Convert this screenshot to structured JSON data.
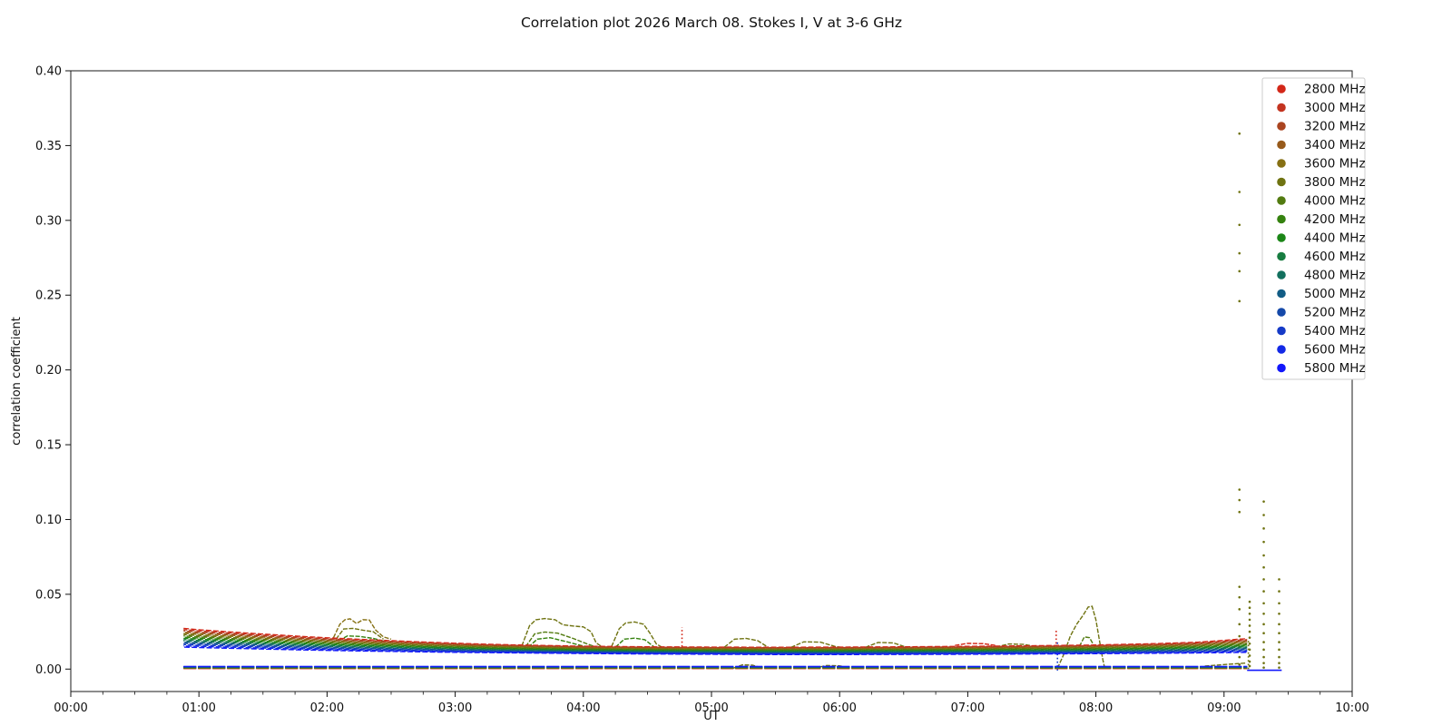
{
  "chart_data": {
    "type": "scatter",
    "title": "Correlation plot 2026 March 08. Stokes I, V at 3-6 GHz",
    "xlabel": "UT",
    "ylabel": "correlation coefficient",
    "xlim_hours": [
      0,
      10
    ],
    "ylim": [
      -0.015,
      0.4
    ],
    "grid": false,
    "xticks": [
      "00:00",
      "01:00",
      "02:00",
      "03:00",
      "04:00",
      "05:00",
      "06:00",
      "07:00",
      "08:00",
      "09:00",
      "10:00"
    ],
    "yticks": [
      "0.00",
      "0.05",
      "0.10",
      "0.15",
      "0.20",
      "0.25",
      "0.30",
      "0.35",
      "0.40"
    ],
    "legend": {
      "position": "upper right",
      "entries": [
        {
          "label": "2800 MHz",
          "color": "#d32718"
        },
        {
          "label": "3000 MHz",
          "color": "#c33420"
        },
        {
          "label": "3200 MHz",
          "color": "#aa4420"
        },
        {
          "label": "3400 MHz",
          "color": "#975a1b"
        },
        {
          "label": "3600 MHz",
          "color": "#867013"
        },
        {
          "label": "3800 MHz",
          "color": "#6f7311"
        },
        {
          "label": "4000 MHz",
          "color": "#527b10"
        },
        {
          "label": "4200 MHz",
          "color": "#35820f"
        },
        {
          "label": "4400 MHz",
          "color": "#1b8617"
        },
        {
          "label": "4600 MHz",
          "color": "#177c40"
        },
        {
          "label": "4800 MHz",
          "color": "#13705e"
        },
        {
          "label": "5000 MHz",
          "color": "#125c85"
        },
        {
          "label": "5200 MHz",
          "color": "#1549a9"
        },
        {
          "label": "5400 MHz",
          "color": "#153ac7"
        },
        {
          "label": "5600 MHz",
          "color": "#1329e6"
        },
        {
          "label": "5800 MHz",
          "color": "#1217fb"
        }
      ]
    },
    "series_band": {
      "x_hours": [
        0.88,
        1.0,
        1.25,
        1.5,
        1.75,
        2.0,
        2.25,
        2.5,
        2.75,
        3.0,
        3.25,
        3.5,
        4.0,
        4.5,
        5.0,
        5.5,
        6.0,
        6.5,
        7.0,
        7.5,
        8.0,
        8.5,
        8.8,
        9.0,
        9.1,
        9.18
      ],
      "top": [
        0.0272,
        0.0263,
        0.0248,
        0.0234,
        0.0221,
        0.0209,
        0.0199,
        0.019,
        0.0181,
        0.0173,
        0.0166,
        0.0161,
        0.0153,
        0.0149,
        0.0147,
        0.0146,
        0.0147,
        0.0149,
        0.0152,
        0.0156,
        0.0161,
        0.0171,
        0.018,
        0.0192,
        0.0199,
        0.0203
      ],
      "bottom": [
        0.0147,
        0.0144,
        0.0139,
        0.0134,
        0.0129,
        0.0125,
        0.0121,
        0.0118,
        0.0115,
        0.0112,
        0.011,
        0.0108,
        0.0104,
        0.0101,
        0.0099,
        0.0097,
        0.0097,
        0.0098,
        0.0099,
        0.0101,
        0.0103,
        0.0106,
        0.0108,
        0.011,
        0.0111,
        0.0112
      ]
    },
    "series_zero": {
      "x_start": 0.88,
      "x_end": 9.18,
      "v_min": 0.0003,
      "v_max": 0.0018,
      "tail_freq": "5800 MHz",
      "tail_points": [
        [
          9.18,
          -0.0008
        ],
        [
          9.45,
          -0.0008
        ]
      ]
    },
    "bumps": [
      {
        "freq": "3600 MHz",
        "points": [
          [
            2.05,
            0.021
          ],
          [
            2.1,
            0.03
          ],
          [
            2.14,
            0.033
          ],
          [
            2.18,
            0.0336
          ],
          [
            2.23,
            0.0305
          ],
          [
            2.28,
            0.033
          ],
          [
            2.33,
            0.0328
          ],
          [
            2.38,
            0.026
          ],
          [
            2.44,
            0.0215
          ],
          [
            2.5,
            0.02
          ]
        ]
      },
      {
        "freq": "3800 MHz",
        "points": [
          [
            2.07,
            0.02
          ],
          [
            2.13,
            0.0268
          ],
          [
            2.2,
            0.0272
          ],
          [
            2.28,
            0.026
          ],
          [
            2.36,
            0.025
          ],
          [
            2.44,
            0.02
          ]
        ]
      },
      {
        "freq": "4200 MHz",
        "points": [
          [
            2.09,
            0.019
          ],
          [
            2.16,
            0.0222
          ],
          [
            2.26,
            0.0218
          ],
          [
            2.36,
            0.0205
          ],
          [
            2.44,
            0.0188
          ]
        ]
      },
      {
        "freq": "3800 MHz",
        "points": [
          [
            3.52,
            0.0155
          ],
          [
            3.58,
            0.029
          ],
          [
            3.63,
            0.033
          ],
          [
            3.7,
            0.0338
          ],
          [
            3.78,
            0.033
          ],
          [
            3.84,
            0.0296
          ],
          [
            3.92,
            0.0288
          ],
          [
            4.0,
            0.0282
          ],
          [
            4.06,
            0.025
          ],
          [
            4.1,
            0.0175
          ],
          [
            4.14,
            0.0152
          ]
        ]
      },
      {
        "freq": "4000 MHz",
        "points": [
          [
            3.55,
            0.015
          ],
          [
            3.62,
            0.0235
          ],
          [
            3.7,
            0.0248
          ],
          [
            3.8,
            0.024
          ],
          [
            3.92,
            0.0205
          ],
          [
            4.04,
            0.0165
          ],
          [
            4.1,
            0.0148
          ]
        ]
      },
      {
        "freq": "4200 MHz",
        "points": [
          [
            3.57,
            0.0146
          ],
          [
            3.64,
            0.02
          ],
          [
            3.74,
            0.021
          ],
          [
            3.86,
            0.0185
          ],
          [
            3.98,
            0.0158
          ],
          [
            4.06,
            0.0145
          ]
        ]
      },
      {
        "freq": "3800 MHz",
        "points": [
          [
            4.22,
            0.015
          ],
          [
            4.28,
            0.027
          ],
          [
            4.33,
            0.0308
          ],
          [
            4.4,
            0.0315
          ],
          [
            4.47,
            0.03
          ],
          [
            4.52,
            0.024
          ],
          [
            4.57,
            0.0168
          ],
          [
            4.61,
            0.0148
          ]
        ]
      },
      {
        "freq": "4200 MHz",
        "points": [
          [
            4.25,
            0.0146
          ],
          [
            4.32,
            0.02
          ],
          [
            4.4,
            0.0207
          ],
          [
            4.48,
            0.0196
          ],
          [
            4.55,
            0.015
          ]
        ]
      },
      {
        "freq": "3800 MHz",
        "points": [
          [
            5.1,
            0.0146
          ],
          [
            5.18,
            0.02
          ],
          [
            5.27,
            0.0205
          ],
          [
            5.36,
            0.019
          ],
          [
            5.44,
            0.0147
          ]
        ]
      },
      {
        "freq": "3800 MHz",
        "points": [
          [
            5.62,
            0.0145
          ],
          [
            5.72,
            0.0182
          ],
          [
            5.85,
            0.018
          ],
          [
            5.97,
            0.015
          ],
          [
            6.03,
            0.0144
          ]
        ]
      },
      {
        "freq": "3800 MHz",
        "points": [
          [
            6.2,
            0.0145
          ],
          [
            6.3,
            0.0178
          ],
          [
            6.42,
            0.0175
          ],
          [
            6.52,
            0.0146
          ]
        ]
      },
      {
        "freq": "2800 MHz",
        "points": [
          [
            6.9,
            0.0158
          ],
          [
            7.0,
            0.0172
          ],
          [
            7.12,
            0.017
          ],
          [
            7.22,
            0.0158
          ]
        ]
      },
      {
        "freq": "3800 MHz",
        "points": [
          [
            7.22,
            0.0148
          ],
          [
            7.32,
            0.0168
          ],
          [
            7.44,
            0.0165
          ],
          [
            7.54,
            0.0148
          ]
        ]
      },
      {
        "freq": "3800 MHz",
        "points": [
          [
            7.7,
            0.0005
          ],
          [
            7.75,
            0.01
          ],
          [
            7.8,
            0.022
          ],
          [
            7.85,
            0.03
          ],
          [
            7.9,
            0.036
          ],
          [
            7.94,
            0.0415
          ],
          [
            7.97,
            0.042
          ],
          [
            8.0,
            0.033
          ],
          [
            8.03,
            0.018
          ],
          [
            8.055,
            0.006
          ],
          [
            8.07,
            0.0002
          ]
        ]
      },
      {
        "freq": "4000 MHz",
        "points": [
          [
            7.87,
            0.015
          ],
          [
            7.91,
            0.0215
          ],
          [
            7.95,
            0.021
          ],
          [
            7.99,
            0.015
          ]
        ]
      },
      {
        "freq": "3800 MHz",
        "points": [
          [
            5.17,
            0.0006
          ],
          [
            5.24,
            0.0028
          ],
          [
            5.32,
            0.0026
          ],
          [
            5.4,
            0.0006
          ]
        ]
      },
      {
        "freq": "3800 MHz",
        "points": [
          [
            5.8,
            0.0006
          ],
          [
            5.9,
            0.0024
          ],
          [
            6.0,
            0.0022
          ],
          [
            6.08,
            0.0005
          ]
        ]
      },
      {
        "freq": "3800 MHz",
        "points": [
          [
            8.85,
            0.002
          ],
          [
            9.0,
            0.003
          ],
          [
            9.1,
            0.0036
          ],
          [
            9.17,
            0.004
          ]
        ]
      }
    ],
    "vertical_features": [
      {
        "freq": "2800 MHz",
        "x": 4.77,
        "v": [
          0.015,
          0.028
        ]
      },
      {
        "freq": "2800 MHz",
        "x": 7.69,
        "v": [
          0.017,
          0.026
        ]
      },
      {
        "freq": "5400 MHz",
        "x": 7.7,
        "v": [
          -0.001,
          0.019
        ]
      },
      {
        "freq": "3800 MHz",
        "x": 9.19,
        "v": [
          0.0,
          0.02
        ]
      }
    ],
    "scatter_columns": [
      {
        "freq": "3800 MHz",
        "h": 9.12,
        "values": [
          0.358,
          0.319,
          0.297,
          0.278,
          0.266,
          0.246,
          0.12,
          0.113,
          0.105,
          0.055,
          0.048,
          0.04,
          0.03,
          0.022,
          0.015,
          0.008,
          0.003
        ]
      },
      {
        "freq": "3800 MHz",
        "h": 9.2,
        "values": [
          0.045,
          0.041,
          0.037,
          0.033,
          0.029,
          0.025,
          0.021,
          0.017,
          0.013,
          0.009,
          0.005,
          0.002
        ]
      },
      {
        "freq": "3800 MHz",
        "h": 9.31,
        "values": [
          0.112,
          0.103,
          0.094,
          0.085,
          0.076,
          0.068,
          0.06,
          0.052,
          0.044,
          0.037,
          0.03,
          0.024,
          0.018,
          0.013,
          0.008,
          0.004,
          0.001
        ]
      },
      {
        "freq": "3800 MHz",
        "h": 9.43,
        "values": [
          0.06,
          0.052,
          0.044,
          0.037,
          0.03,
          0.024,
          0.018,
          0.013,
          0.008,
          0.004,
          0.001
        ]
      }
    ]
  }
}
